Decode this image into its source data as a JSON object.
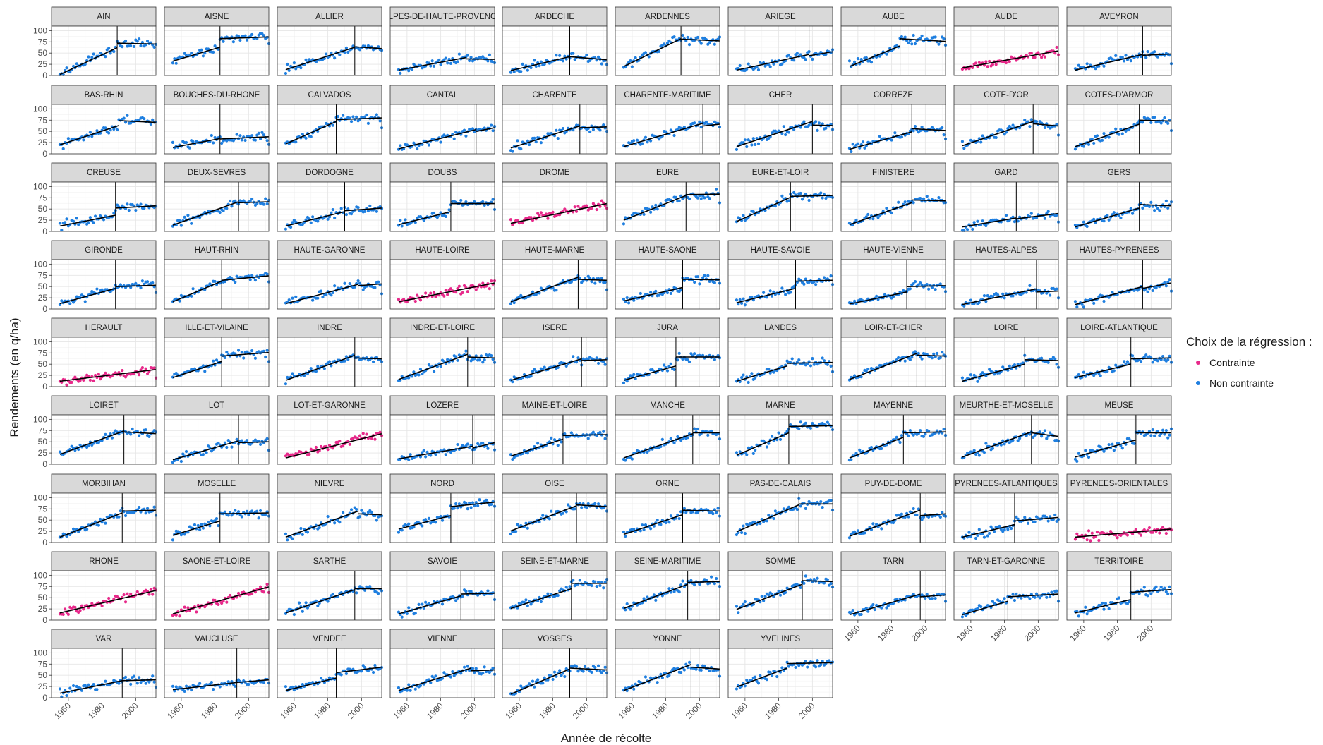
{
  "chart_data": {
    "type": "scatter",
    "facet": "wrap",
    "xlabel": "Année de récolte",
    "ylabel": "Rendements (en q/ha)",
    "ylim": [
      0,
      110
    ],
    "xlim": [
      1950,
      2012
    ],
    "x_ticks": [
      1960,
      1980,
      2000
    ],
    "y_ticks": [
      0,
      25,
      50,
      75,
      100
    ],
    "grid": true,
    "legend": {
      "title": "Choix de la régression :",
      "position": "right",
      "items": [
        {
          "label": "Contrainte",
          "color": "#e7298a"
        },
        {
          "label": "Non contrainte",
          "color": "#1f7fe0"
        }
      ]
    },
    "colors": {
      "contrainte": "#e7298a",
      "non_contrainte": "#1f7fe0",
      "line": "#000000",
      "strip": "#d9d9d9",
      "grid_major": "#e6e6e6",
      "grid_minor": "#f2f2f2"
    },
    "panels": [
      {
        "name": "AIN",
        "break": 1989,
        "s": 2.2,
        "e": 62,
        "j": 72,
        "f": 70,
        "c": "N"
      },
      {
        "name": "AISNE",
        "break": 1983,
        "s": 32,
        "e": 63,
        "j": 82,
        "f": 86,
        "c": "N"
      },
      {
        "name": "ALLIER",
        "break": 1996,
        "s": 13,
        "e": 63,
        "j": 64,
        "f": 60,
        "c": "N"
      },
      {
        "name": "ALPES-DE-HAUTE-PROVENCE",
        "break": 1995,
        "s": 12,
        "e": 40,
        "j": 37,
        "f": 36,
        "c": "N"
      },
      {
        "name": "ARDECHE",
        "break": 1990,
        "s": 11,
        "e": 42,
        "j": 42,
        "f": 35,
        "c": "N"
      },
      {
        "name": "ARDENNES",
        "break": 1989,
        "s": 20,
        "e": 82,
        "j": 81,
        "f": 77,
        "c": "N"
      },
      {
        "name": "ARIEGE",
        "break": 1998,
        "s": 12,
        "e": 47,
        "j": 44,
        "f": 53,
        "c": "N"
      },
      {
        "name": "AUBE",
        "break": 1985,
        "s": 20,
        "e": 66,
        "j": 82,
        "f": 76,
        "c": "N"
      },
      {
        "name": "AUDE",
        "break": null,
        "s": 17,
        "e": 55,
        "c": "C"
      },
      {
        "name": "AVEYRON",
        "break": 1995,
        "s": 12,
        "e": 47,
        "j": 45,
        "f": 48,
        "c": "N"
      },
      {
        "name": "BAS-RHIN",
        "break": 1990,
        "s": 20,
        "e": 63,
        "j": 74,
        "f": 70,
        "c": "N"
      },
      {
        "name": "BOUCHES-DU-RHONE",
        "break": 1983,
        "s": 14,
        "e": 34,
        "j": 33,
        "f": 38,
        "c": "N"
      },
      {
        "name": "CALVADOS",
        "break": 1985,
        "s": 22,
        "e": 72,
        "j": 76,
        "f": 80,
        "c": "N"
      },
      {
        "name": "CANTAL",
        "break": 2001,
        "s": 11,
        "e": 54,
        "j": 50,
        "f": 58,
        "c": "N"
      },
      {
        "name": "CHARENTE",
        "break": 1996,
        "s": 13,
        "e": 62,
        "j": 58,
        "f": 60,
        "c": "N"
      },
      {
        "name": "CHARENTE-MARITIME",
        "break": 2002,
        "s": 16,
        "e": 68,
        "j": 62,
        "f": 66,
        "c": "N"
      },
      {
        "name": "CHER",
        "break": 2000,
        "s": 16,
        "e": 72,
        "j": 64,
        "f": 63,
        "c": "N"
      },
      {
        "name": "CORREZE",
        "break": 1992,
        "s": 10,
        "e": 49,
        "j": 56,
        "f": 52,
        "c": "N"
      },
      {
        "name": "COTE-D'OR",
        "break": 1997,
        "s": 18,
        "e": 72,
        "j": 67,
        "f": 62,
        "c": "N"
      },
      {
        "name": "COTES-D'ARMOR",
        "break": 1993,
        "s": 16,
        "e": 66,
        "j": 75,
        "f": 73,
        "c": "N"
      },
      {
        "name": "CREUSE",
        "break": 1988,
        "s": 12,
        "e": 36,
        "j": 52,
        "f": 57,
        "c": "N"
      },
      {
        "name": "DEUX-SEVRES",
        "break": 1994,
        "s": 14,
        "e": 66,
        "j": 64,
        "f": 66,
        "c": "N"
      },
      {
        "name": "DORDOGNE",
        "break": 1990,
        "s": 12,
        "e": 44,
        "j": 46,
        "f": 52,
        "c": "N"
      },
      {
        "name": "DOUBS",
        "break": 1986,
        "s": 15,
        "e": 44,
        "j": 62,
        "f": 62,
        "c": "N"
      },
      {
        "name": "DROME",
        "break": null,
        "s": 18,
        "e": 62,
        "c": "C"
      },
      {
        "name": "EURE",
        "break": 1992,
        "s": 25,
        "e": 80,
        "j": 82,
        "f": 83,
        "c": "N"
      },
      {
        "name": "EURE-ET-LOIR",
        "break": 1987,
        "s": 22,
        "e": 76,
        "j": 78,
        "f": 80,
        "c": "N"
      },
      {
        "name": "FINISTERE",
        "break": 1992,
        "s": 15,
        "e": 64,
        "j": 70,
        "f": 68,
        "c": "N"
      },
      {
        "name": "GARD",
        "break": 1987,
        "s": 10,
        "e": 30,
        "j": 28,
        "f": 40,
        "c": "N"
      },
      {
        "name": "GERS",
        "break": 1993,
        "s": 10,
        "e": 52,
        "j": 60,
        "f": 57,
        "c": "N"
      },
      {
        "name": "GIRONDE",
        "break": 1988,
        "s": 12,
        "e": 46,
        "j": 50,
        "f": 53,
        "c": "N"
      },
      {
        "name": "HAUT-RHIN",
        "break": 1984,
        "s": 16,
        "e": 62,
        "j": 64,
        "f": 74,
        "c": "N"
      },
      {
        "name": "HAUTE-GARONNE",
        "break": 1998,
        "s": 12,
        "e": 55,
        "j": 52,
        "f": 56,
        "c": "N"
      },
      {
        "name": "HAUTE-LOIRE",
        "break": null,
        "s": 16,
        "e": 58,
        "c": "C"
      },
      {
        "name": "HAUTE-MARNE",
        "break": 1995,
        "s": 16,
        "e": 71,
        "j": 66,
        "f": 64,
        "c": "N"
      },
      {
        "name": "HAUTE-SAONE",
        "break": 1990,
        "s": 18,
        "e": 48,
        "j": 66,
        "f": 65,
        "c": "N"
      },
      {
        "name": "HAUTE-SAVOIE",
        "break": 1990,
        "s": 14,
        "e": 46,
        "j": 62,
        "f": 64,
        "c": "N"
      },
      {
        "name": "HAUTE-VIENNE",
        "break": 1989,
        "s": 11,
        "e": 38,
        "j": 50,
        "f": 52,
        "c": "N"
      },
      {
        "name": "HAUTES-ALPES",
        "break": 1999,
        "s": 10,
        "e": 45,
        "j": 38,
        "f": 40,
        "c": "N"
      },
      {
        "name": "HAUTES-PYRENEES",
        "break": 1995,
        "s": 10,
        "e": 50,
        "j": 46,
        "f": 58,
        "c": "N"
      },
      {
        "name": "HERAULT",
        "break": null,
        "s": 12,
        "e": 38,
        "c": "C"
      },
      {
        "name": "ILLE-ET-VILAINE",
        "break": 1984,
        "s": 20,
        "e": 56,
        "j": 68,
        "f": 76,
        "c": "N"
      },
      {
        "name": "INDRE",
        "break": 1996,
        "s": 14,
        "e": 70,
        "j": 64,
        "f": 62,
        "c": "N"
      },
      {
        "name": "INDRE-ET-LOIRE",
        "break": 1996,
        "s": 16,
        "e": 72,
        "j": 66,
        "f": 64,
        "c": "N"
      },
      {
        "name": "ISERE",
        "break": 1997,
        "s": 14,
        "e": 62,
        "j": 58,
        "f": 60,
        "c": "N"
      },
      {
        "name": "JURA",
        "break": 1986,
        "s": 14,
        "e": 46,
        "j": 66,
        "f": 66,
        "c": "N"
      },
      {
        "name": "LANDES",
        "break": 1985,
        "s": 12,
        "e": 46,
        "j": 52,
        "f": 54,
        "c": "N"
      },
      {
        "name": "LOIR-ET-CHER",
        "break": 1995,
        "s": 16,
        "e": 74,
        "j": 70,
        "f": 68,
        "c": "N"
      },
      {
        "name": "LOIRE",
        "break": 1992,
        "s": 12,
        "e": 50,
        "j": 60,
        "f": 58,
        "c": "N"
      },
      {
        "name": "LOIRE-ATLANTIQUE",
        "break": 1988,
        "s": 20,
        "e": 50,
        "j": 62,
        "f": 64,
        "c": "N"
      },
      {
        "name": "LOIRET",
        "break": 1993,
        "s": 22,
        "e": 74,
        "j": 72,
        "f": 68,
        "c": "N"
      },
      {
        "name": "LOT",
        "break": 1994,
        "s": 10,
        "e": 52,
        "j": 48,
        "f": 50,
        "c": "N"
      },
      {
        "name": "LOT-ET-GARONNE",
        "break": null,
        "s": 14,
        "e": 68,
        "c": "C"
      },
      {
        "name": "LOZERE",
        "break": 1999,
        "s": 12,
        "e": 40,
        "j": 36,
        "f": 48,
        "c": "N"
      },
      {
        "name": "MAINE-ET-LOIRE",
        "break": 1986,
        "s": 18,
        "e": 56,
        "j": 64,
        "f": 66,
        "c": "N"
      },
      {
        "name": "MANCHE",
        "break": 1996,
        "s": 14,
        "e": 68,
        "j": 70,
        "f": 70,
        "c": "N"
      },
      {
        "name": "MARNE",
        "break": 1986,
        "s": 20,
        "e": 70,
        "j": 84,
        "f": 86,
        "c": "N"
      },
      {
        "name": "MAYENNE",
        "break": 1987,
        "s": 14,
        "e": 60,
        "j": 70,
        "f": 72,
        "c": "N"
      },
      {
        "name": "MEURTHE-ET-MOSELLE",
        "break": 1996,
        "s": 16,
        "e": 72,
        "j": 70,
        "f": 62,
        "c": "N"
      },
      {
        "name": "MEUSE",
        "break": 1991,
        "s": 16,
        "e": 54,
        "j": 70,
        "f": 70,
        "c": "N"
      },
      {
        "name": "MORBIHAN",
        "break": 1992,
        "s": 12,
        "e": 66,
        "j": 70,
        "f": 72,
        "c": "N"
      },
      {
        "name": "MOSELLE",
        "break": 1983,
        "s": 16,
        "e": 48,
        "j": 64,
        "f": 66,
        "c": "N"
      },
      {
        "name": "NIEVRE",
        "break": 1998,
        "s": 12,
        "e": 70,
        "j": 64,
        "f": 62,
        "c": "N"
      },
      {
        "name": "NORD",
        "break": 1986,
        "s": 30,
        "e": 60,
        "j": 80,
        "f": 90,
        "c": "N"
      },
      {
        "name": "OISE",
        "break": 1994,
        "s": 26,
        "e": 82,
        "j": 84,
        "f": 80,
        "c": "N"
      },
      {
        "name": "ORNE",
        "break": 1990,
        "s": 18,
        "e": 62,
        "j": 72,
        "f": 70,
        "c": "N"
      },
      {
        "name": "PAS-DE-CALAIS",
        "break": 1992,
        "s": 24,
        "e": 84,
        "j": 86,
        "f": 86,
        "c": "N"
      },
      {
        "name": "PUY-DE-DOME",
        "break": 1997,
        "s": 14,
        "e": 72,
        "j": 60,
        "f": 64,
        "c": "N"
      },
      {
        "name": "PYRENEES-ATLANTIQUES",
        "break": 1986,
        "s": 12,
        "e": 40,
        "j": 48,
        "f": 56,
        "c": "N"
      },
      {
        "name": "PYRENEES-ORIENTALES",
        "break": null,
        "s": 12,
        "e": 30,
        "c": "C"
      },
      {
        "name": "RHONE",
        "break": null,
        "s": 16,
        "e": 66,
        "c": "C"
      },
      {
        "name": "SAONE-ET-LOIRE",
        "break": null,
        "s": 14,
        "e": 74,
        "c": "C"
      },
      {
        "name": "SARTHE",
        "break": 1996,
        "s": 16,
        "e": 68,
        "j": 70,
        "f": 70,
        "c": "N"
      },
      {
        "name": "SAVOIE",
        "break": 1992,
        "s": 14,
        "e": 54,
        "j": 58,
        "f": 60,
        "c": "N"
      },
      {
        "name": "SEINE-ET-MARNE",
        "break": 1991,
        "s": 26,
        "e": 70,
        "j": 82,
        "f": 82,
        "c": "N"
      },
      {
        "name": "SEINE-MARITIME",
        "break": 1993,
        "s": 26,
        "e": 80,
        "j": 84,
        "f": 86,
        "c": "N"
      },
      {
        "name": "SOMME",
        "break": 1994,
        "s": 24,
        "e": 80,
        "j": 88,
        "f": 86,
        "c": "N"
      },
      {
        "name": "TARN",
        "break": 1997,
        "s": 12,
        "e": 58,
        "j": 52,
        "f": 56,
        "c": "N"
      },
      {
        "name": "TARN-ET-GARONNE",
        "break": 1982,
        "s": 12,
        "e": 42,
        "j": 52,
        "f": 58,
        "c": "N"
      },
      {
        "name": "TERRITOIRE",
        "break": 1988,
        "s": 16,
        "e": 46,
        "j": 62,
        "f": 68,
        "c": "N"
      },
      {
        "name": "VAR",
        "break": 1992,
        "s": 10,
        "e": 38,
        "j": 38,
        "f": 40,
        "c": "N"
      },
      {
        "name": "VAUCLUSE",
        "break": 1993,
        "s": 18,
        "e": 34,
        "j": 34,
        "f": 40,
        "c": "N"
      },
      {
        "name": "VENDEE",
        "break": 1985,
        "s": 16,
        "e": 44,
        "j": 56,
        "f": 68,
        "c": "N"
      },
      {
        "name": "VIENNE",
        "break": 1998,
        "s": 16,
        "e": 66,
        "j": 60,
        "f": 62,
        "c": "N"
      },
      {
        "name": "VOSGES",
        "break": 1990,
        "s": 8,
        "e": 64,
        "j": 66,
        "f": 62,
        "c": "N"
      },
      {
        "name": "YONNE",
        "break": 1995,
        "s": 16,
        "e": 74,
        "j": 68,
        "f": 64,
        "c": "N"
      },
      {
        "name": "YVELINES",
        "break": 1985,
        "s": 24,
        "e": 66,
        "j": 76,
        "f": 78,
        "c": "N"
      }
    ]
  }
}
